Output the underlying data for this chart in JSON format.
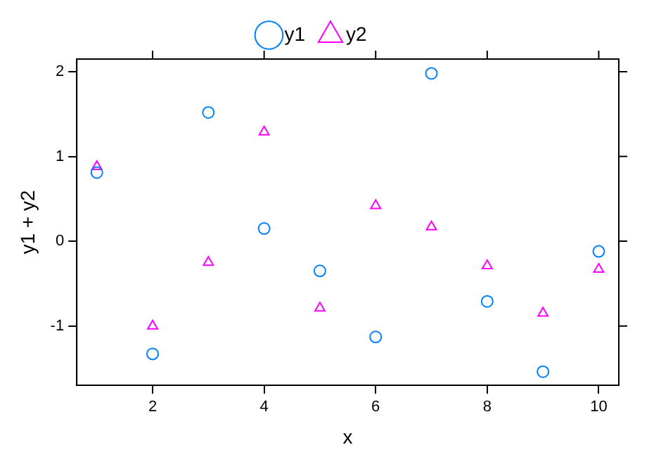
{
  "chart_data": {
    "type": "scatter",
    "xlabel": "x",
    "ylabel": "y1 + y2",
    "x": [
      1,
      2,
      3,
      4,
      5,
      6,
      7,
      8,
      9,
      10
    ],
    "series": [
      {
        "name": "y1",
        "color": "#0080ff",
        "marker": "circle",
        "values": [
          0.81,
          -1.33,
          1.52,
          0.15,
          -0.35,
          -1.13,
          1.98,
          -0.71,
          -1.54,
          -0.12
        ]
      },
      {
        "name": "y2",
        "color": "#ff00ff",
        "marker": "triangle",
        "values": [
          0.88,
          -1.0,
          -0.25,
          1.29,
          -0.79,
          0.42,
          0.17,
          -0.29,
          -0.85,
          -0.33
        ]
      }
    ],
    "xlim": [
      0.64,
      10.36
    ],
    "xticks": [
      2,
      4,
      6,
      8,
      10
    ],
    "ylim": [
      -1.7,
      2.15
    ],
    "yticks": [
      -1,
      0,
      1,
      2
    ],
    "grid": false,
    "legend": "top"
  }
}
